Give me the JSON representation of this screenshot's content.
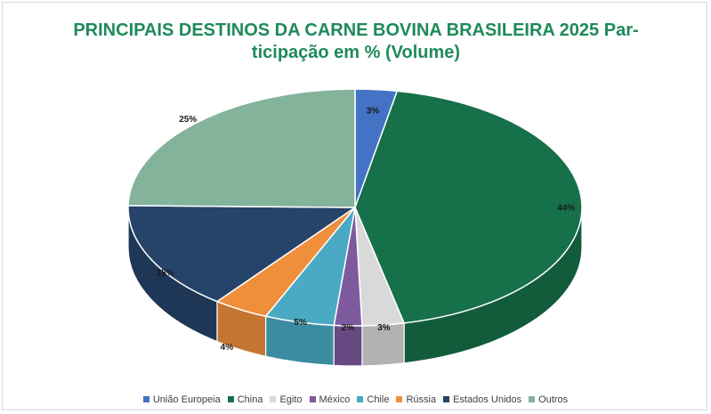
{
  "chart_data": {
    "type": "pie",
    "title": "PRINCIPAIS DESTINOS DA CARNE BOVINA BRASILEIRA 2025  Participação em % (Volume)",
    "title_lines": [
      "PRINCIPAIS DESTINOS DA CARNE BOVINA BRASILEIRA 2025  Par-",
      "ticipação em % (Volume)"
    ],
    "legend_position": "bottom",
    "slices": [
      {
        "name": "União Europeia",
        "value": 3,
        "label": "3%",
        "color": "#4472c4"
      },
      {
        "name": "China",
        "value": 44,
        "label": "44%",
        "color": "#167049"
      },
      {
        "name": "Egito",
        "value": 3,
        "label": "3%",
        "color": "#d9d9d9"
      },
      {
        "name": "México",
        "value": 2,
        "label": "2%",
        "color": "#7d5a9e"
      },
      {
        "name": "Chile",
        "value": 5,
        "label": "5%",
        "color": "#4aaac4"
      },
      {
        "name": "Rússia",
        "value": 4,
        "label": "4%",
        "color": "#ef8f3c"
      },
      {
        "name": "Estados Unidos",
        "value": 15,
        "label": "15%",
        "color": "#264369"
      },
      {
        "name": "Outros",
        "value": 25,
        "label": "25%",
        "color": "#83b39b"
      }
    ]
  }
}
